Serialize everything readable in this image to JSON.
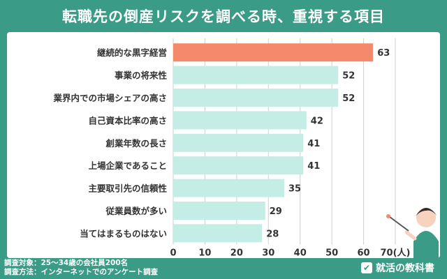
{
  "header": {
    "title": "転職先の倒産リスクを調べる時、重視する項目"
  },
  "footer": {
    "line1": "調査対象：25〜34歳の会社員200名",
    "line2": "調査方法：インターネットでのアンケート調査",
    "logo_text": "就活の教科書",
    "logo_icon": "check-badge-icon"
  },
  "chart_data": {
    "type": "bar",
    "orientation": "horizontal",
    "categories": [
      "継続的な黒字経営",
      "事業の将来性",
      "業界内での市場シェアの高さ",
      "自己資本比率の高さ",
      "創業年数の長さ",
      "上場企業であること",
      "主要取引先の信頼性",
      "従業員数が多い",
      "当てはまるものはない"
    ],
    "values": [
      63,
      52,
      52,
      42,
      41,
      41,
      35,
      29,
      28
    ],
    "xlim": [
      0,
      70
    ],
    "xticks": [
      0,
      10,
      20,
      30,
      40,
      50,
      60,
      70
    ],
    "unit": "(人)",
    "highlight_index": 0,
    "grid": true,
    "colors": {
      "highlight": "#f4896b",
      "bar": "#c4ede6",
      "grid": "#cfcfcf",
      "text": "#333333"
    }
  },
  "illustration": {
    "name": "presenter-illustration"
  }
}
